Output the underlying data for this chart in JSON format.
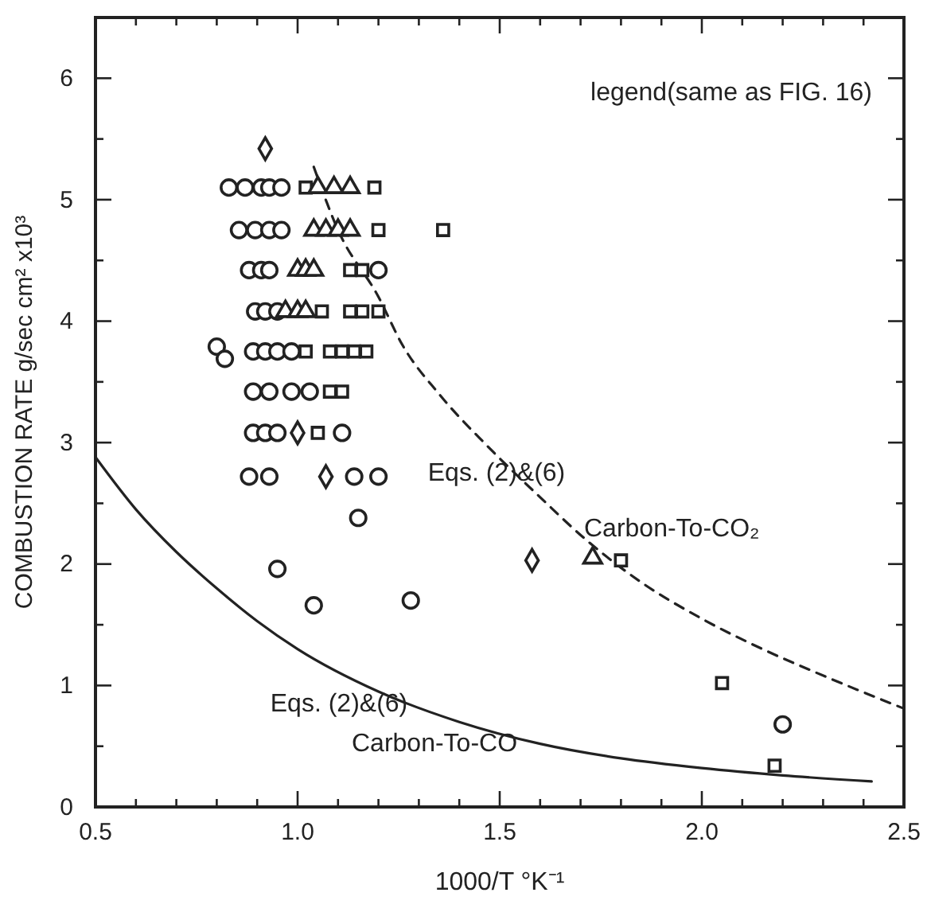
{
  "chart_data": {
    "type": "scatter",
    "xlabel": "1000/T  °K⁻¹",
    "ylabel": "COMBUSTION RATE  g/sec cm² x10³",
    "xlim": [
      0.5,
      2.5
    ],
    "ylim": [
      0,
      6.5
    ],
    "xticks": [
      {
        "value": 0.5,
        "label": "0.5"
      },
      {
        "value": 0.6,
        "label": null
      },
      {
        "value": 0.7,
        "label": null
      },
      {
        "value": 0.8,
        "label": null
      },
      {
        "value": 0.9,
        "label": null
      },
      {
        "value": 1.0,
        "label": "1.0"
      },
      {
        "value": 1.1,
        "label": null
      },
      {
        "value": 1.2,
        "label": null
      },
      {
        "value": 1.3,
        "label": null
      },
      {
        "value": 1.4,
        "label": null
      },
      {
        "value": 1.5,
        "label": "1.5"
      },
      {
        "value": 1.6,
        "label": null
      },
      {
        "value": 1.7,
        "label": null
      },
      {
        "value": 1.8,
        "label": null
      },
      {
        "value": 1.9,
        "label": null
      },
      {
        "value": 2.0,
        "label": "2.0"
      },
      {
        "value": 2.1,
        "label": null
      },
      {
        "value": 2.2,
        "label": null
      },
      {
        "value": 2.3,
        "label": null
      },
      {
        "value": 2.4,
        "label": null
      },
      {
        "value": 2.5,
        "label": "2.5"
      }
    ],
    "yticks": [
      0,
      {
        "value": 0.5,
        "label": null
      },
      1,
      {
        "value": 1.5,
        "label": null
      },
      2,
      {
        "value": 2.5,
        "label": null
      },
      3,
      {
        "value": 3.5,
        "label": null
      },
      4,
      {
        "value": 4.5,
        "label": null
      },
      5,
      {
        "value": 5.5,
        "label": null
      },
      6
    ],
    "grid": false,
    "annotations": [
      "legend(same as FIG. 16)",
      "Eqs. (2)&(6)",
      "Carbon-To-CO₂",
      "Eqs. (2)&(6)",
      "Carbon-To-CO"
    ],
    "series": [
      {
        "type": "line",
        "line_style": "solid",
        "marker": "none",
        "color": "#222222",
        "x": [
          0.5,
          0.6,
          0.7,
          0.8,
          0.9,
          1.0,
          1.2,
          1.4,
          1.6,
          1.8,
          2.0,
          2.2,
          2.42
        ],
        "values": [
          2.88,
          2.45,
          2.1,
          1.8,
          1.53,
          1.3,
          0.95,
          0.7,
          0.52,
          0.4,
          0.32,
          0.26,
          0.21
        ]
      },
      {
        "type": "line",
        "line_style": "dashed",
        "marker": "none",
        "color": "#222222",
        "x": [
          1.04,
          1.1,
          1.2,
          1.26,
          1.35,
          1.47,
          1.6,
          1.71,
          1.85,
          2.0,
          2.15,
          2.28,
          2.5
        ],
        "values": [
          5.27,
          4.75,
          4.2,
          3.8,
          3.4,
          2.97,
          2.55,
          2.21,
          1.85,
          1.55,
          1.3,
          1.11,
          0.81
        ]
      },
      {
        "marker": "circle",
        "color": "#222222",
        "x": [
          0.83,
          0.87,
          0.91,
          0.93,
          0.96,
          0.855,
          0.895,
          0.93,
          0.96,
          0.88,
          0.91,
          0.93,
          1.2,
          0.895,
          0.92,
          0.95,
          0.89,
          0.92,
          0.95,
          0.985,
          0.89,
          0.93,
          0.985,
          1.03,
          0.89,
          0.92,
          0.95,
          1.11,
          0.88,
          0.93,
          1.14,
          1.2,
          1.15,
          1.28,
          2.2
        ],
        "values": [
          5.1,
          5.1,
          5.1,
          5.1,
          5.1,
          4.75,
          4.75,
          4.75,
          4.75,
          4.42,
          4.42,
          4.42,
          4.42,
          4.08,
          4.08,
          4.08,
          3.75,
          3.75,
          3.75,
          3.75,
          3.42,
          3.42,
          3.42,
          3.42,
          3.08,
          3.08,
          3.08,
          3.08,
          2.72,
          2.72,
          2.72,
          2.72,
          2.38,
          1.7,
          0.68
        ]
      },
      {
        "marker": "circle",
        "color": "#222222",
        "x": [
          0.8,
          0.82,
          0.95,
          1.04
        ],
        "values": [
          3.79,
          3.69,
          1.96,
          1.66
        ]
      },
      {
        "marker": "diamond",
        "color": "#222222",
        "x": [
          0.92,
          1.0,
          1.07,
          1.58
        ],
        "values": [
          5.42,
          3.08,
          2.72,
          2.03
        ]
      },
      {
        "marker": "square",
        "color": "#222222",
        "x": [
          1.02,
          1.19,
          1.2,
          1.36,
          1.13,
          1.16,
          1.06,
          1.13,
          1.16,
          1.2,
          1.02,
          1.08,
          1.11,
          1.14,
          1.17,
          1.08,
          1.11,
          1.05,
          1.8,
          2.05,
          2.18
        ],
        "values": [
          5.1,
          5.1,
          4.75,
          4.75,
          4.42,
          4.42,
          4.08,
          4.08,
          4.08,
          4.08,
          3.75,
          3.75,
          3.75,
          3.75,
          3.75,
          3.42,
          3.42,
          3.08,
          2.03,
          1.02,
          0.34
        ]
      },
      {
        "marker": "triangle",
        "color": "#222222",
        "x": [
          1.05,
          1.09,
          1.13,
          1.04,
          1.07,
          1.1,
          1.13,
          1.0,
          1.02,
          1.04,
          0.97,
          1.0,
          1.02,
          1.73
        ],
        "values": [
          5.1,
          5.1,
          5.1,
          4.75,
          4.75,
          4.75,
          4.75,
          4.42,
          4.42,
          4.42,
          4.08,
          4.08,
          4.08,
          2.05
        ]
      }
    ]
  }
}
